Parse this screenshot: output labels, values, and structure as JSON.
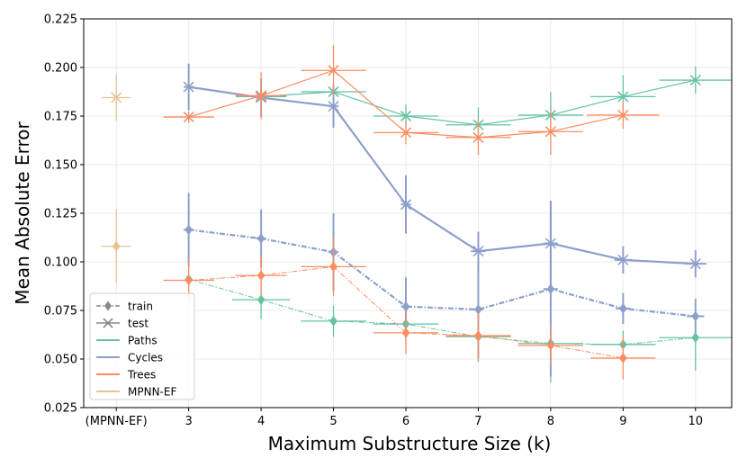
{
  "chart_data": {
    "type": "line",
    "title": "",
    "xlabel": "Maximum Substructure Size (k)",
    "ylabel": "Mean Absolute Error",
    "categories": [
      "(MPNN-EF)",
      "3",
      "4",
      "5",
      "6",
      "7",
      "8",
      "9",
      "10"
    ],
    "x_positions": [
      2,
      3,
      4,
      5,
      6,
      7,
      8,
      9,
      10
    ],
    "xlim": [
      1.55,
      10.5
    ],
    "ylim": [
      0.025,
      0.225
    ],
    "yticks": [
      "0.025",
      "0.050",
      "0.075",
      "0.100",
      "0.125",
      "0.150",
      "0.175",
      "0.200",
      "0.225"
    ],
    "ytick_values": [
      0.025,
      0.05,
      0.075,
      0.1,
      0.125,
      0.15,
      0.175,
      0.2,
      0.225
    ],
    "grid": true,
    "legend_position": "lower-left",
    "legend": [
      {
        "label": "train",
        "kind": "marker",
        "marker": "diamond",
        "color": "#888888",
        "dash": true
      },
      {
        "label": "test",
        "kind": "marker",
        "marker": "x",
        "color": "#888888",
        "dash": false
      },
      {
        "label": "Paths",
        "kind": "line",
        "color": "#66c2a5"
      },
      {
        "label": "Cycles",
        "kind": "line",
        "color": "#8da0cb"
      },
      {
        "label": "Trees",
        "kind": "line",
        "color": "#fc8d62"
      },
      {
        "label": "MPNN-EF",
        "kind": "line",
        "color": "#e5c494"
      }
    ],
    "series": [
      {
        "name": "Paths",
        "split": "test",
        "color": "#66c2a5",
        "width": 1.2,
        "dash": false,
        "marker": "x",
        "points": [
          {
            "x": 4,
            "y": 0.185,
            "xerr": 0.35,
            "yerr": 0.005
          },
          {
            "x": 5,
            "y": 0.1875,
            "xerr": 0.45,
            "yerr": 0.004
          },
          {
            "x": 6,
            "y": 0.175,
            "xerr": 0.45,
            "yerr": 0.006
          },
          {
            "x": 7,
            "y": 0.1705,
            "xerr": 0.45,
            "yerr": 0.009
          },
          {
            "x": 8,
            "y": 0.1755,
            "xerr": 0.45,
            "yerr": 0.012
          },
          {
            "x": 9,
            "y": 0.185,
            "xerr": 0.45,
            "yerr": 0.011
          },
          {
            "x": 10,
            "y": 0.1935,
            "xerr": 0.5,
            "yerr": 0.007
          }
        ]
      },
      {
        "name": "Cycles",
        "split": "test",
        "color": "#8da0cb",
        "width": 2.2,
        "dash": false,
        "marker": "x",
        "points": [
          {
            "x": 3,
            "y": 0.19,
            "xerr": 0.07,
            "yerr": 0.012
          },
          {
            "x": 4,
            "y": 0.1845,
            "xerr": 0.07,
            "yerr": 0.01
          },
          {
            "x": 5,
            "y": 0.18,
            "xerr": 0.07,
            "yerr": 0.011
          },
          {
            "x": 6,
            "y": 0.1295,
            "xerr": 0.07,
            "yerr": 0.015
          },
          {
            "x": 7,
            "y": 0.1055,
            "xerr": 0.1,
            "yerr": 0.01
          },
          {
            "x": 8,
            "y": 0.1095,
            "xerr": 0.1,
            "yerr": 0.022
          },
          {
            "x": 9,
            "y": 0.101,
            "xerr": 0.12,
            "yerr": 0.007
          },
          {
            "x": 10,
            "y": 0.099,
            "xerr": 0.15,
            "yerr": 0.007
          }
        ]
      },
      {
        "name": "Trees",
        "split": "test",
        "color": "#fc8d62",
        "width": 1.2,
        "dash": false,
        "marker": "x",
        "points": [
          {
            "x": 3,
            "y": 0.1745,
            "xerr": 0.35,
            "yerr": 0.003
          },
          {
            "x": 4,
            "y": 0.1855,
            "xerr": 0.35,
            "yerr": 0.012
          },
          {
            "x": 5,
            "y": 0.1985,
            "xerr": 0.45,
            "yerr": 0.013
          },
          {
            "x": 6,
            "y": 0.1665,
            "xerr": 0.45,
            "yerr": 0.006
          },
          {
            "x": 7,
            "y": 0.164,
            "xerr": 0.45,
            "yerr": 0.009
          },
          {
            "x": 8,
            "y": 0.167,
            "xerr": 0.45,
            "yerr": 0.012
          },
          {
            "x": 9,
            "y": 0.1755,
            "xerr": 0.5,
            "yerr": 0.007
          }
        ]
      },
      {
        "name": "MPNN-EF",
        "split": "test",
        "color": "#e5c494",
        "width": 1.2,
        "dash": false,
        "marker": "x",
        "points": [
          {
            "x": 2,
            "y": 0.1845,
            "xerr": 0.2,
            "yerr": 0.012
          }
        ]
      },
      {
        "name": "Paths",
        "split": "train",
        "color": "#66c2a5",
        "width": 1.0,
        "dash": true,
        "marker": "diamond",
        "points": [
          {
            "x": 3,
            "y": 0.091,
            "xerr": 0.0,
            "yerr": 0.0
          },
          {
            "x": 4,
            "y": 0.0805,
            "xerr": 0.4,
            "yerr": 0.01
          },
          {
            "x": 5,
            "y": 0.0695,
            "xerr": 0.45,
            "yerr": 0.008
          },
          {
            "x": 6,
            "y": 0.068,
            "xerr": 0.45,
            "yerr": 0.01
          },
          {
            "x": 7,
            "y": 0.0615,
            "xerr": 0.45,
            "yerr": 0.013
          },
          {
            "x": 8,
            "y": 0.058,
            "xerr": 0.45,
            "yerr": 0.02
          },
          {
            "x": 9,
            "y": 0.0575,
            "xerr": 0.45,
            "yerr": 0.007
          },
          {
            "x": 10,
            "y": 0.061,
            "xerr": 0.5,
            "yerr": 0.017
          }
        ]
      },
      {
        "name": "Cycles",
        "split": "train",
        "color": "#8da0cb",
        "width": 2.2,
        "dash": true,
        "marker": "diamond",
        "points": [
          {
            "x": 3,
            "y": 0.1165,
            "xerr": 0.07,
            "yerr": 0.019
          },
          {
            "x": 4,
            "y": 0.112,
            "xerr": 0.07,
            "yerr": 0.015
          },
          {
            "x": 5,
            "y": 0.105,
            "xerr": 0.07,
            "yerr": 0.02
          },
          {
            "x": 6,
            "y": 0.077,
            "xerr": 0.07,
            "yerr": 0.015
          },
          {
            "x": 7,
            "y": 0.0755,
            "xerr": 0.07,
            "yerr": 0.025
          },
          {
            "x": 8,
            "y": 0.086,
            "xerr": 0.1,
            "yerr": 0.045
          },
          {
            "x": 9,
            "y": 0.076,
            "xerr": 0.1,
            "yerr": 0.008
          },
          {
            "x": 10,
            "y": 0.072,
            "xerr": 0.12,
            "yerr": 0.009
          }
        ]
      },
      {
        "name": "Trees",
        "split": "train",
        "color": "#fc8d62",
        "width": 1.0,
        "dash": true,
        "marker": "diamond",
        "points": [
          {
            "x": 3,
            "y": 0.0905,
            "xerr": 0.35,
            "yerr": 0.011
          },
          {
            "x": 4,
            "y": 0.093,
            "xerr": 0.35,
            "yerr": 0.01
          },
          {
            "x": 5,
            "y": 0.0975,
            "xerr": 0.45,
            "yerr": 0.015
          },
          {
            "x": 6,
            "y": 0.0635,
            "xerr": 0.45,
            "yerr": 0.011
          },
          {
            "x": 7,
            "y": 0.062,
            "xerr": 0.45,
            "yerr": 0.012
          },
          {
            "x": 8,
            "y": 0.057,
            "xerr": 0.45,
            "yerr": 0.01
          },
          {
            "x": 9,
            "y": 0.0505,
            "xerr": 0.45,
            "yerr": 0.011
          }
        ]
      },
      {
        "name": "MPNN-EF",
        "split": "train",
        "color": "#e5c494",
        "width": 1.2,
        "dash": false,
        "marker": "diamond",
        "points": [
          {
            "x": 2,
            "y": 0.108,
            "xerr": 0.2,
            "yerr": 0.019
          }
        ]
      }
    ]
  }
}
